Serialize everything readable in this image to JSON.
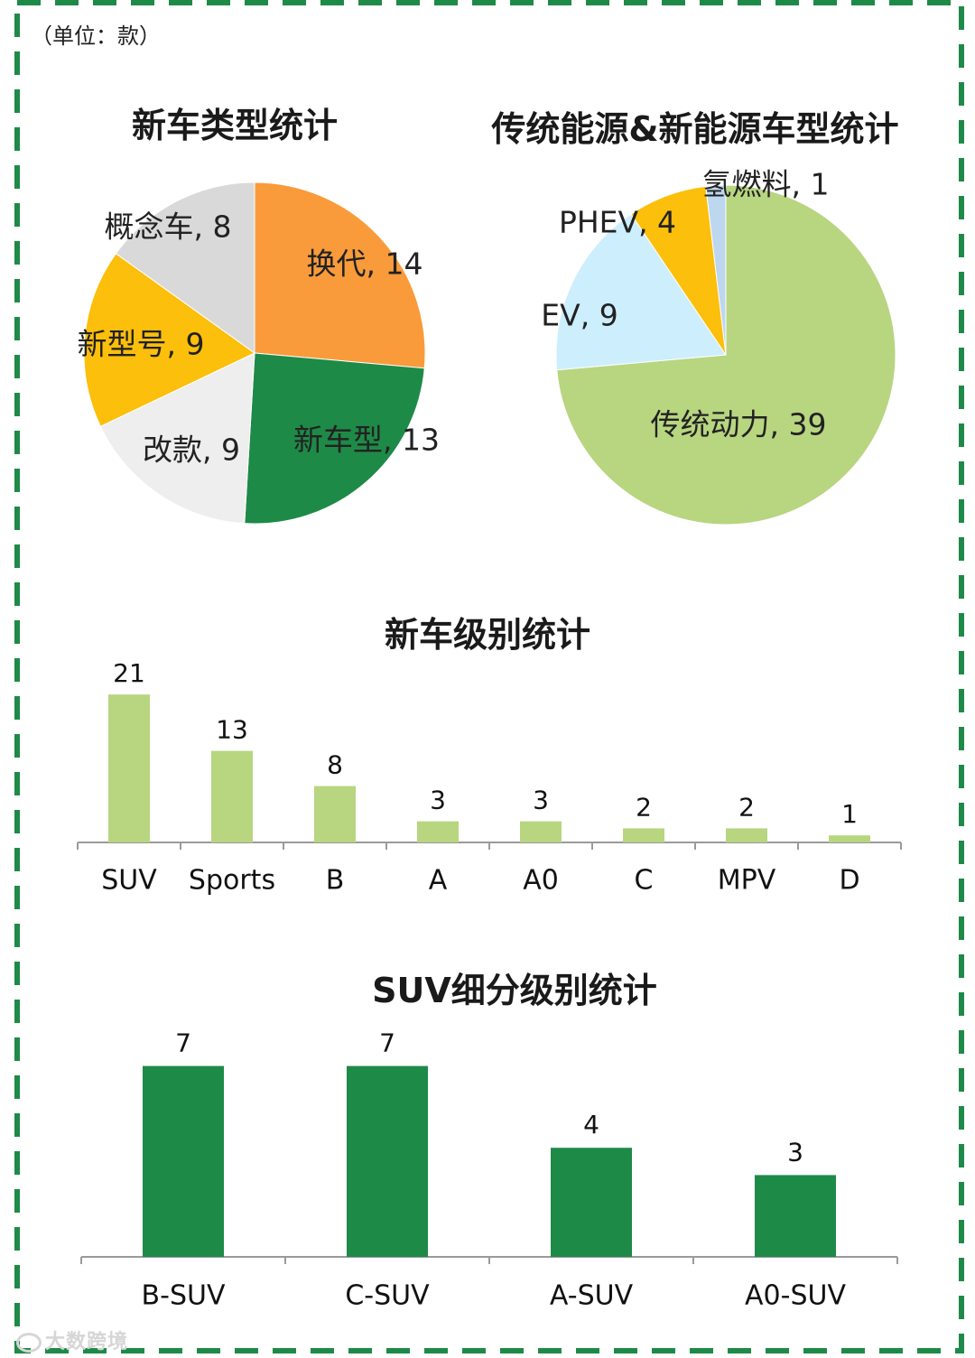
{
  "unit_label": "（单位：款）",
  "watermark": "大数跨境",
  "colors": {
    "border": "#1e8a47",
    "orange": "#f99b3a",
    "dark_green": "#1e8a47",
    "light_gray": "#eeeeee",
    "yellow": "#fbbf0c",
    "gray": "#d9d9d9",
    "light_green": "#b8d580",
    "light_blue": "#cdeefc",
    "pale_blue": "#bdd7ee"
  },
  "chart_data": [
    {
      "type": "pie",
      "title": "新车类型统计",
      "slices": [
        {
          "label": "换代, 14",
          "name": "换代",
          "value": 14,
          "color": "#f99b3a"
        },
        {
          "label": "新车型, 13",
          "name": "新车型",
          "value": 13,
          "color": "#1e8a47"
        },
        {
          "label": "改款, 9",
          "name": "改款",
          "value": 9,
          "color": "#eeeeee"
        },
        {
          "label": "新型号, 9",
          "name": "新型号",
          "value": 9,
          "color": "#fbbf0c"
        },
        {
          "label": "概念车, 8",
          "name": "概念车",
          "value": 8,
          "color": "#d9d9d9"
        }
      ]
    },
    {
      "type": "pie",
      "title": "传统能源&新能源车型统计",
      "slices": [
        {
          "label": "传统动力, 39",
          "name": "传统动力",
          "value": 39,
          "color": "#b8d580"
        },
        {
          "label": "EV, 9",
          "name": "EV",
          "value": 9,
          "color": "#cdeefc"
        },
        {
          "label": "PHEV, 4",
          "name": "PHEV",
          "value": 4,
          "color": "#fbbf0c"
        },
        {
          "label": "氢燃料, 1",
          "name": "氢燃料",
          "value": 1,
          "color": "#bdd7ee"
        }
      ]
    },
    {
      "type": "bar",
      "title": "新车级别统计",
      "categories": [
        "SUV",
        "Sports",
        "B",
        "A",
        "A0",
        "C",
        "MPV",
        "D"
      ],
      "values": [
        21,
        13,
        8,
        3,
        3,
        2,
        2,
        1
      ],
      "color": "#b8d580"
    },
    {
      "type": "bar",
      "title": "SUV细分级别统计",
      "categories": [
        "B-SUV",
        "C-SUV",
        "A-SUV",
        "A0-SUV"
      ],
      "values": [
        7,
        7,
        4,
        3
      ],
      "color": "#1e8a47"
    }
  ]
}
